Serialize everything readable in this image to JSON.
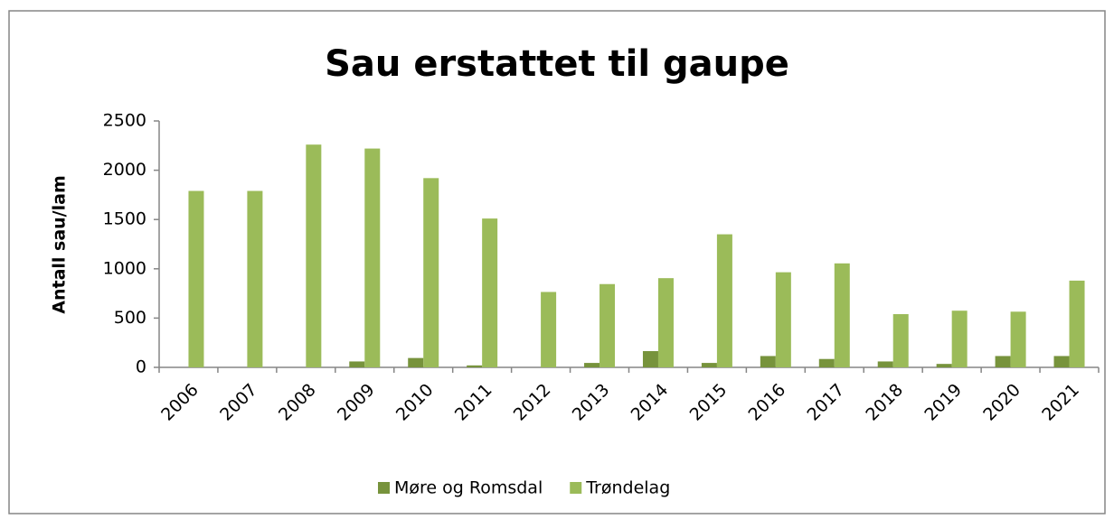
{
  "chart_data": {
    "type": "bar",
    "title": "Sau erstattet til gaupe",
    "y_label": "Antall sau/lam",
    "categories": [
      "2006",
      "2007",
      "2008",
      "2009",
      "2010",
      "2011",
      "2012",
      "2013",
      "2014",
      "2015",
      "2016",
      "2017",
      "2018",
      "2019",
      "2020",
      "2021"
    ],
    "series": [
      {
        "name": "Møre og Romsdal",
        "color": "#77933c",
        "values": [
          0,
          0,
          0,
          60,
          95,
          20,
          0,
          45,
          165,
          45,
          115,
          85,
          60,
          35,
          115,
          115
        ]
      },
      {
        "name": "Trøndelag",
        "color": "#9bbb59",
        "values": [
          1790,
          1790,
          2260,
          2220,
          1920,
          1510,
          765,
          845,
          905,
          1350,
          965,
          1055,
          540,
          575,
          565,
          880
        ]
      }
    ],
    "ylim": [
      0,
      2500
    ],
    "yticks": [
      0,
      500,
      1000,
      1500,
      2000,
      2500
    ],
    "grid": false,
    "legend": "bottom"
  }
}
